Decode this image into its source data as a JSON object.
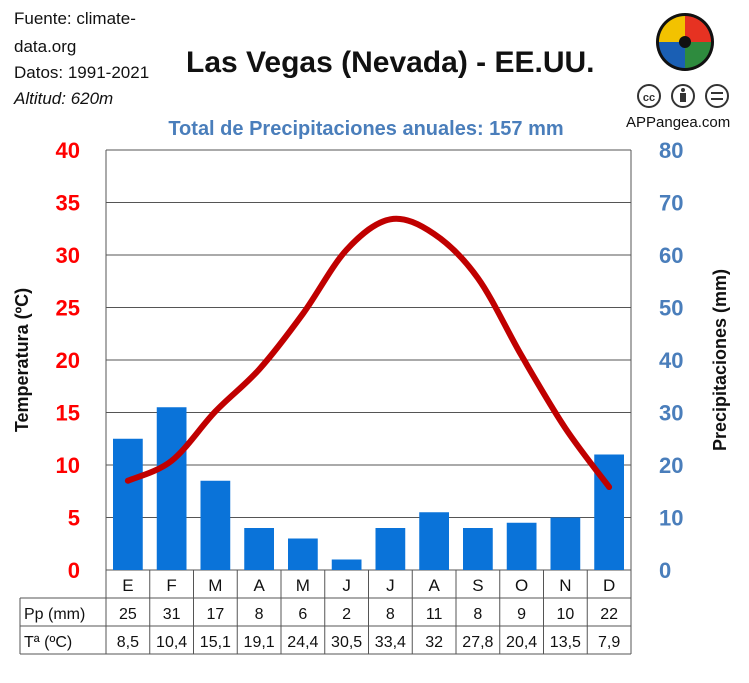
{
  "source": {
    "line1": "Fuente: climate-",
    "line2": "data.org",
    "line3": "Datos: 1991-2021",
    "line4": "Altitud: 620m"
  },
  "brand": "APPangea.com",
  "colors": {
    "temp_axis": "#ff0000",
    "precip_axis": "#4a7ebb",
    "bar": "#0a73d9",
    "line": "#c00000",
    "subtitle": "#4a7ebb",
    "grid": "#555555"
  },
  "chart_data": {
    "type": "bar",
    "title": "Las Vegas (Nevada) - EE.UU.",
    "subtitle": "Total de Precipitaciones anuales: 157 mm",
    "categories": [
      "E",
      "F",
      "M",
      "A",
      "M",
      "J",
      "J",
      "A",
      "S",
      "O",
      "N",
      "D"
    ],
    "series": [
      {
        "name": "Pp (mm)",
        "type": "bar",
        "axis": "right",
        "values": [
          25,
          31,
          17,
          8,
          6,
          2,
          8,
          11,
          8,
          9,
          10,
          22
        ]
      },
      {
        "name": "Tª (ºC)",
        "type": "line",
        "axis": "left",
        "values": [
          8.5,
          10.4,
          15.1,
          19.1,
          24.4,
          30.5,
          33.4,
          32,
          27.8,
          20.4,
          13.5,
          7.9
        ]
      }
    ],
    "table": {
      "rows": [
        {
          "label": "Pp (mm)",
          "cells": [
            "25",
            "31",
            "17",
            "8",
            "6",
            "2",
            "8",
            "11",
            "8",
            "9",
            "10",
            "22"
          ]
        },
        {
          "label": "Tª (ºC)",
          "cells": [
            "8,5",
            "10,4",
            "15,1",
            "19,1",
            "24,4",
            "30,5",
            "33,4",
            "32",
            "27,8",
            "20,4",
            "13,5",
            "7,9"
          ]
        }
      ]
    },
    "ylabel_left": "Temperatura (ºC)",
    "ylabel_right": "Precipitaciones (mm)",
    "ylim_left": [
      0,
      40
    ],
    "ylim_right": [
      0,
      80
    ],
    "yticks_left": [
      "0",
      "5",
      "10",
      "15",
      "20",
      "25",
      "30",
      "35",
      "40"
    ],
    "yticks_right": [
      "0",
      "10",
      "20",
      "30",
      "40",
      "50",
      "60",
      "70",
      "80"
    ],
    "grid": true
  }
}
